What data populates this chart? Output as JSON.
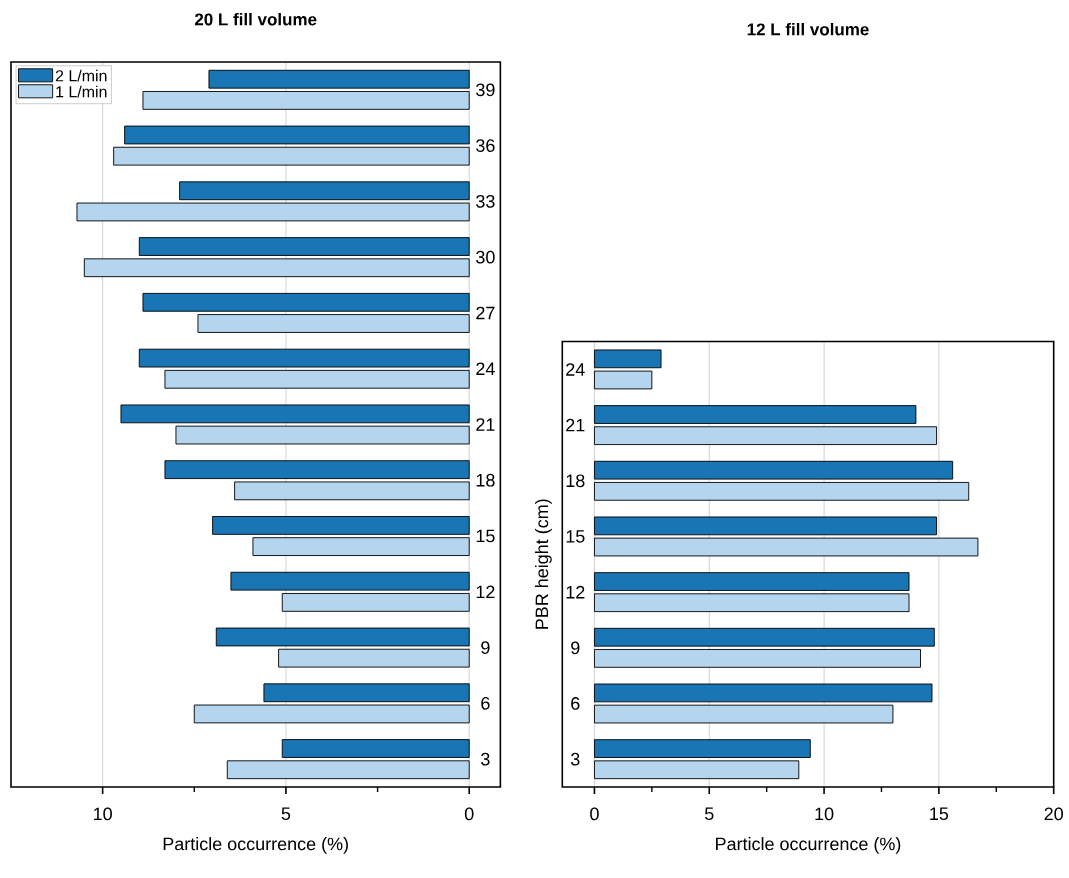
{
  "chart_data": [
    {
      "type": "bar",
      "orientation": "horizontal",
      "title": "20 L fill volume",
      "xlabel": "Particle occurrence (%)",
      "categories": [
        "39",
        "36",
        "33",
        "30",
        "27",
        "24",
        "21",
        "18",
        "15",
        "12",
        "9",
        "6",
        "3"
      ],
      "series": [
        {
          "name": "2 L/min",
          "color": "#1a75b4",
          "values": [
            7.1,
            9.4,
            7.9,
            9.0,
            8.9,
            9.0,
            9.5,
            8.3,
            7.0,
            6.5,
            6.9,
            5.6,
            5.1
          ]
        },
        {
          "name": "1 L/min",
          "color": "#b4d5ed",
          "values": [
            8.9,
            9.7,
            10.7,
            10.5,
            7.4,
            8.3,
            8.0,
            6.4,
            5.9,
            5.1,
            5.2,
            7.5,
            6.6
          ]
        }
      ],
      "xlim": [
        12.5,
        -0.85
      ],
      "xticks": [
        0,
        {
          "value": 2.5,
          "label": null
        },
        5,
        {
          "value": 7.5,
          "label": null
        },
        10
      ],
      "grid": "x",
      "legend": "top left"
    },
    {
      "type": "bar",
      "orientation": "horizontal",
      "title": "12 L fill volume",
      "xlabel": "Particle occurrence (%)",
      "ylabel": "PBR height (cm)",
      "categories": [
        "24",
        "21",
        "18",
        "15",
        "12",
        "9",
        "6",
        "3"
      ],
      "series": [
        {
          "color": "#1a75b4",
          "values": [
            2.9,
            14.0,
            15.6,
            14.9,
            13.7,
            14.8,
            14.7,
            9.4
          ]
        },
        {
          "color": "#b4d5ed",
          "values": [
            2.5,
            14.9,
            16.3,
            16.7,
            13.7,
            14.2,
            13.0,
            8.9
          ]
        }
      ],
      "xlim": [
        -1.4,
        20
      ],
      "xticks": [
        0,
        {
          "value": 2.5,
          "label": null
        },
        5,
        {
          "value": 7.5,
          "label": null
        },
        10,
        {
          "value": 12.5,
          "label": null
        },
        15,
        {
          "value": 17.5,
          "label": null
        },
        20
      ],
      "grid": "x"
    }
  ]
}
